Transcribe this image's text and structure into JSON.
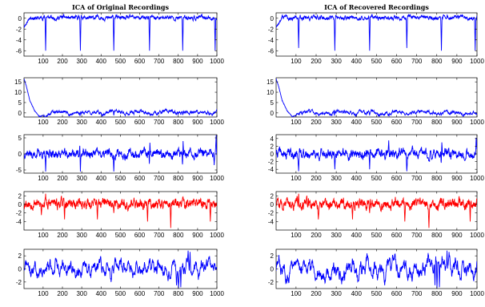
{
  "colors": {
    "blue": "#0000ff",
    "red": "#ff0000",
    "axis": "#000000"
  },
  "chart_data": [
    {
      "type": "line",
      "title": "ICA of Original Recordings",
      "column": "left",
      "row": 0,
      "color": "#0000ff",
      "xlim": [
        1,
        1000
      ],
      "ylim": [
        -7,
        1
      ],
      "xticks": [
        100,
        200,
        300,
        400,
        500,
        600,
        700,
        800,
        900,
        1000
      ],
      "yticks": [
        0,
        -2,
        -4,
        -6
      ],
      "ytick_labels": [
        "0",
        "-2",
        "-4",
        "-6"
      ],
      "signal": {
        "base": 0.1,
        "slope": 0.0,
        "noise": 0.25,
        "mean_revert": 0.3,
        "wave_amp": 0.1,
        "wave_period": 90,
        "seed": 11,
        "init": [
          [
            0,
            -1.6
          ],
          [
            12,
            -1.0
          ],
          [
            25,
            -0.2
          ]
        ],
        "spikes": [
          [
            112,
            -6.0
          ],
          [
            292,
            -6.0
          ],
          [
            465,
            -6.0
          ],
          [
            650,
            -6.0
          ],
          [
            822,
            -6.0
          ],
          [
            990,
            -6.0
          ]
        ]
      }
    },
    {
      "type": "line",
      "title": "",
      "column": "left",
      "row": 1,
      "color": "#0000ff",
      "xlim": [
        1,
        1000
      ],
      "ylim": [
        -2,
        17
      ],
      "xticks": [
        100,
        200,
        300,
        400,
        500,
        600,
        700,
        800,
        900,
        1000
      ],
      "yticks": [
        15,
        10,
        5,
        0
      ],
      "ytick_labels": [
        "15",
        "10",
        "5",
        "0"
      ],
      "signal": {
        "base": 0.2,
        "slope": 0.0,
        "noise": 0.5,
        "mean_revert": 0.15,
        "wave_amp": 0.5,
        "wave_period": 140,
        "seed": 23,
        "init": [
          [
            0,
            16.5
          ],
          [
            12,
            13.0
          ],
          [
            30,
            6.0
          ],
          [
            55,
            1.0
          ],
          [
            80,
            -1.8
          ],
          [
            100,
            -1.2
          ]
        ],
        "spikes": [
          [
            290,
            -1.5
          ],
          [
            465,
            -1.2
          ],
          [
            655,
            -1.2
          ],
          [
            822,
            -1.0
          ]
        ]
      }
    },
    {
      "type": "line",
      "title": "",
      "column": "left",
      "row": 2,
      "color": "#0000ff",
      "xlim": [
        1,
        1000
      ],
      "ylim": [
        -6,
        6
      ],
      "xticks": [
        100,
        200,
        300,
        400,
        500,
        600,
        700,
        800,
        900,
        1000
      ],
      "yticks": [
        5,
        0,
        -5
      ],
      "ytick_labels": [
        "5",
        "0",
        "-5"
      ],
      "signal": {
        "base": 0.0,
        "slope": 0.0,
        "noise": 0.9,
        "mean_revert": 0.35,
        "wave_amp": 0.4,
        "wave_period": 60,
        "seed": 37,
        "init": [],
        "spikes": [
          [
            112,
            -5.5
          ],
          [
            290,
            4.5
          ],
          [
            292,
            -5.5
          ],
          [
            465,
            -5.5
          ],
          [
            650,
            -5.5
          ],
          [
            652,
            3.5
          ],
          [
            822,
            -5.5
          ],
          [
            824,
            4.0
          ],
          [
            995,
            5.8
          ],
          [
            985,
            -3.5
          ]
        ]
      }
    },
    {
      "type": "line",
      "title": "",
      "column": "left",
      "row": 3,
      "color": "#ff0000",
      "xlim": [
        1,
        1000
      ],
      "ylim": [
        -6,
        3
      ],
      "xticks": [
        100,
        200,
        300,
        400,
        500,
        600,
        700,
        800,
        900,
        1000
      ],
      "yticks": [
        2,
        0,
        -2,
        -4
      ],
      "ytick_labels": [
        "2",
        "0",
        "-2",
        "-4"
      ],
      "signal": {
        "base": 0.2,
        "slope": 0.0,
        "noise": 0.8,
        "mean_revert": 0.35,
        "wave_amp": 0.3,
        "wave_period": 45,
        "seed": 53,
        "init": [],
        "spikes": [
          [
            90,
            -2.5
          ],
          [
            112,
            2.5
          ],
          [
            210,
            -3.5
          ],
          [
            380,
            -3.5
          ],
          [
            465,
            -2.0
          ],
          [
            640,
            -4.0
          ],
          [
            760,
            -5.5
          ],
          [
            965,
            -4.0
          ]
        ]
      }
    },
    {
      "type": "line",
      "title": "",
      "column": "left",
      "row": 4,
      "color": "#0000ff",
      "xlim": [
        1,
        1000
      ],
      "ylim": [
        -3,
        3
      ],
      "xticks": [
        100,
        200,
        300,
        400,
        500,
        600,
        700,
        800,
        900,
        1000
      ],
      "yticks": [
        2,
        0,
        -2
      ],
      "ytick_labels": [
        "2",
        "0",
        "-2"
      ],
      "signal": {
        "base": 0.0,
        "slope": 0.0,
        "noise": 0.55,
        "mean_revert": 0.12,
        "wave_amp": 0.8,
        "wave_period": 38,
        "seed": 71,
        "init": [],
        "spikes": [
          [
            790,
            -2.5
          ],
          [
            800,
            -3.0
          ],
          [
            812,
            -2.8
          ],
          [
            850,
            2.8
          ],
          [
            860,
            2.6
          ]
        ]
      }
    },
    {
      "type": "line",
      "title": "ICA of Recovered Recordings",
      "column": "right",
      "row": 0,
      "color": "#0000ff",
      "xlim": [
        1,
        1000
      ],
      "ylim": [
        -7,
        1
      ],
      "xticks": [
        100,
        200,
        300,
        400,
        500,
        600,
        700,
        800,
        900,
        1000
      ],
      "yticks": [
        0,
        -2,
        -4,
        -6
      ],
      "ytick_labels": [
        "0",
        "-2",
        "-4",
        "-6"
      ],
      "signal": {
        "base": 0.1,
        "slope": 0.0,
        "noise": 0.25,
        "mean_revert": 0.3,
        "wave_amp": 0.1,
        "wave_period": 90,
        "seed": 13,
        "init": [
          [
            0,
            -1.6
          ],
          [
            12,
            -1.0
          ],
          [
            25,
            -0.2
          ]
        ],
        "spikes": [
          [
            112,
            -5.5
          ],
          [
            292,
            -6.0
          ],
          [
            465,
            -6.0
          ],
          [
            650,
            -5.5
          ],
          [
            822,
            -6.0
          ],
          [
            990,
            -6.0
          ]
        ]
      }
    },
    {
      "type": "line",
      "title": "",
      "column": "right",
      "row": 1,
      "color": "#0000ff",
      "xlim": [
        1,
        1000
      ],
      "ylim": [
        -2,
        17
      ],
      "xticks": [
        100,
        200,
        300,
        400,
        500,
        600,
        700,
        800,
        900,
        1000
      ],
      "yticks": [
        15,
        10,
        5,
        0
      ],
      "ytick_labels": [
        "15",
        "10",
        "5",
        "0"
      ],
      "signal": {
        "base": 0.2,
        "slope": 0.0,
        "noise": 0.5,
        "mean_revert": 0.15,
        "wave_amp": 0.5,
        "wave_period": 140,
        "seed": 29,
        "init": [
          [
            0,
            16.5
          ],
          [
            12,
            13.0
          ],
          [
            30,
            6.0
          ],
          [
            55,
            1.0
          ],
          [
            80,
            -1.8
          ],
          [
            100,
            -1.2
          ]
        ],
        "spikes": [
          [
            290,
            -1.3
          ],
          [
            465,
            -1.2
          ],
          [
            655,
            -1.0
          ],
          [
            822,
            -1.0
          ]
        ]
      }
    },
    {
      "type": "line",
      "title": "",
      "column": "right",
      "row": 2,
      "color": "#0000ff",
      "xlim": [
        1,
        1000
      ],
      "ylim": [
        -5,
        5
      ],
      "xticks": [
        100,
        200,
        300,
        400,
        500,
        600,
        700,
        800,
        900,
        1000
      ],
      "yticks": [
        4,
        2,
        0,
        -2,
        -4
      ],
      "ytick_labels": [
        "4",
        "2",
        "0",
        "-2",
        "-4"
      ],
      "signal": {
        "base": 0.0,
        "slope": 0.0,
        "noise": 0.8,
        "mean_revert": 0.3,
        "wave_amp": 0.4,
        "wave_period": 55,
        "seed": 41,
        "init": [],
        "spikes": [
          [
            112,
            -4.5
          ],
          [
            292,
            -4.0
          ],
          [
            465,
            -4.0
          ],
          [
            560,
            3.5
          ],
          [
            650,
            -4.5
          ],
          [
            822,
            -4.0
          ],
          [
            824,
            3.0
          ],
          [
            995,
            4.2
          ]
        ]
      }
    },
    {
      "type": "line",
      "title": "",
      "column": "right",
      "row": 3,
      "color": "#ff0000",
      "xlim": [
        1,
        1000
      ],
      "ylim": [
        -6,
        3
      ],
      "xticks": [
        100,
        200,
        300,
        400,
        500,
        600,
        700,
        800,
        900,
        1000
      ],
      "yticks": [
        2,
        0,
        -2,
        -4
      ],
      "ytick_labels": [
        "2",
        "0",
        "-2",
        "-4"
      ],
      "signal": {
        "base": 0.2,
        "slope": 0.0,
        "noise": 0.8,
        "mean_revert": 0.35,
        "wave_amp": 0.3,
        "wave_period": 45,
        "seed": 59,
        "init": [],
        "spikes": [
          [
            112,
            2.5
          ],
          [
            210,
            -3.5
          ],
          [
            380,
            -3.5
          ],
          [
            465,
            -2.0
          ],
          [
            640,
            -4.0
          ],
          [
            760,
            -5.5
          ],
          [
            965,
            -4.0
          ]
        ]
      }
    },
    {
      "type": "line",
      "title": "",
      "column": "right",
      "row": 4,
      "color": "#0000ff",
      "xlim": [
        1,
        1000
      ],
      "ylim": [
        -3,
        3
      ],
      "xticks": [
        100,
        200,
        300,
        400,
        500,
        600,
        700,
        800,
        900,
        1000
      ],
      "yticks": [
        2,
        0,
        -2
      ],
      "ytick_labels": [
        "2",
        "0",
        "-2"
      ],
      "signal": {
        "base": 0.0,
        "slope": 0.0,
        "noise": 0.65,
        "mean_revert": 0.1,
        "wave_amp": 0.9,
        "wave_period": 34,
        "seed": 83,
        "init": [],
        "spikes": [
          [
            790,
            -2.5
          ],
          [
            800,
            -3.0
          ],
          [
            812,
            -2.8
          ],
          [
            850,
            2.8
          ],
          [
            860,
            2.6
          ]
        ]
      }
    }
  ]
}
